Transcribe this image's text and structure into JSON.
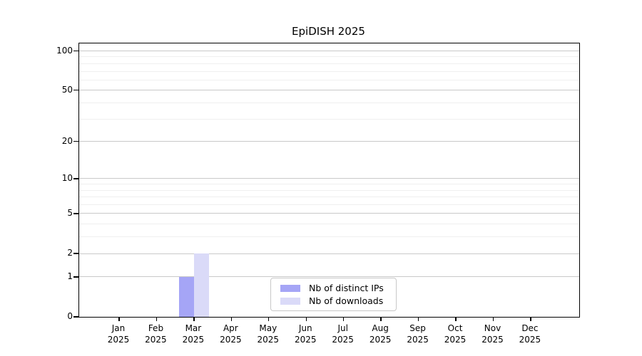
{
  "page": {
    "background": "#ffffff"
  },
  "chart_data": {
    "type": "bar",
    "title": "EpiDISH 2025",
    "categories": [
      "Jan 2025",
      "Feb 2025",
      "Mar 2025",
      "Apr 2025",
      "May 2025",
      "Jun 2025",
      "Jul 2025",
      "Aug 2025",
      "Sep 2025",
      "Oct 2025",
      "Nov 2025",
      "Dec 2025"
    ],
    "series": [
      {
        "name": "Nb of distinct IPs",
        "color": "#a5a5f6",
        "values": [
          0,
          0,
          1,
          0,
          0,
          0,
          0,
          0,
          0,
          0,
          0,
          0
        ]
      },
      {
        "name": "Nb of downloads",
        "color": "#dadaf8",
        "values": [
          0,
          0,
          2,
          0,
          0,
          0,
          0,
          0,
          0,
          0,
          0,
          0
        ]
      }
    ],
    "xlabel": "",
    "ylabel": "",
    "yscale": "log1p",
    "ylim": [
      0,
      114
    ],
    "yticks": [
      0,
      1,
      2,
      5,
      10,
      20,
      50,
      100
    ],
    "yticks_minor": [
      3,
      4,
      6,
      7,
      8,
      9,
      30,
      40,
      60,
      70,
      80,
      90
    ],
    "grid": true,
    "legend_position": "bottom-center",
    "axis_color": "#000000",
    "major_grid_color": "#c9c9c9",
    "minor_grid_color": "#efefef"
  }
}
